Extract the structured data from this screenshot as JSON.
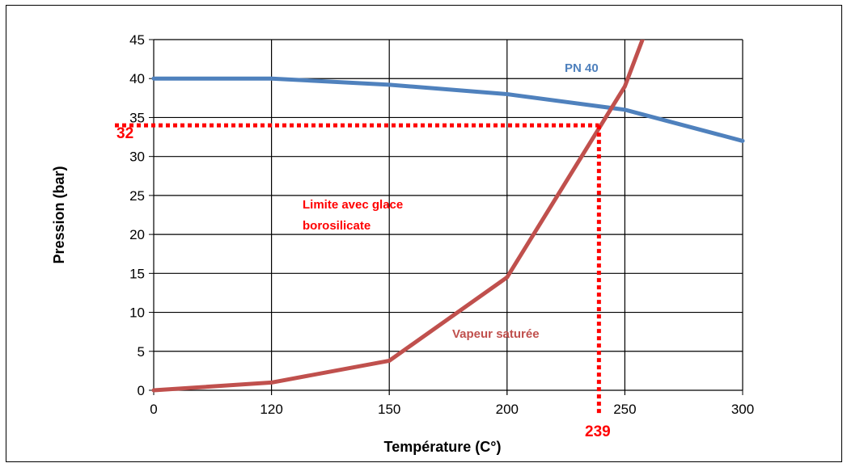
{
  "chart_data": {
    "type": "line",
    "xlabel": "Température (C°)",
    "ylabel": "Pression (bar)",
    "categories": [
      "0",
      "120",
      "150",
      "200",
      "250",
      "300"
    ],
    "ylim": [
      0,
      45
    ],
    "yticks": [
      "0",
      "5",
      "10",
      "15",
      "20",
      "25",
      "30",
      "35",
      "40",
      "45"
    ],
    "grid": true,
    "series": [
      {
        "name": "PN 40",
        "color": "#4f81bd",
        "points": [
          [
            0,
            40
          ],
          [
            120,
            40
          ],
          [
            150,
            39.2
          ],
          [
            200,
            38
          ],
          [
            250,
            36
          ],
          [
            300,
            32
          ]
        ]
      },
      {
        "name": "Vapeur saturée",
        "color": "#c0504d",
        "points": [
          [
            0,
            0
          ],
          [
            120,
            1
          ],
          [
            150,
            3.8
          ],
          [
            200,
            14.5
          ],
          [
            250,
            39
          ],
          [
            260,
            47
          ]
        ]
      }
    ],
    "annotations": {
      "limit_text_line1": "Limite avec glace",
      "limit_text_line2": "borosilicate",
      "value_32": "32",
      "value_239": "239",
      "limit_pressure": 34,
      "limit_temperature": 239,
      "limit_color": "#ff0000"
    }
  }
}
